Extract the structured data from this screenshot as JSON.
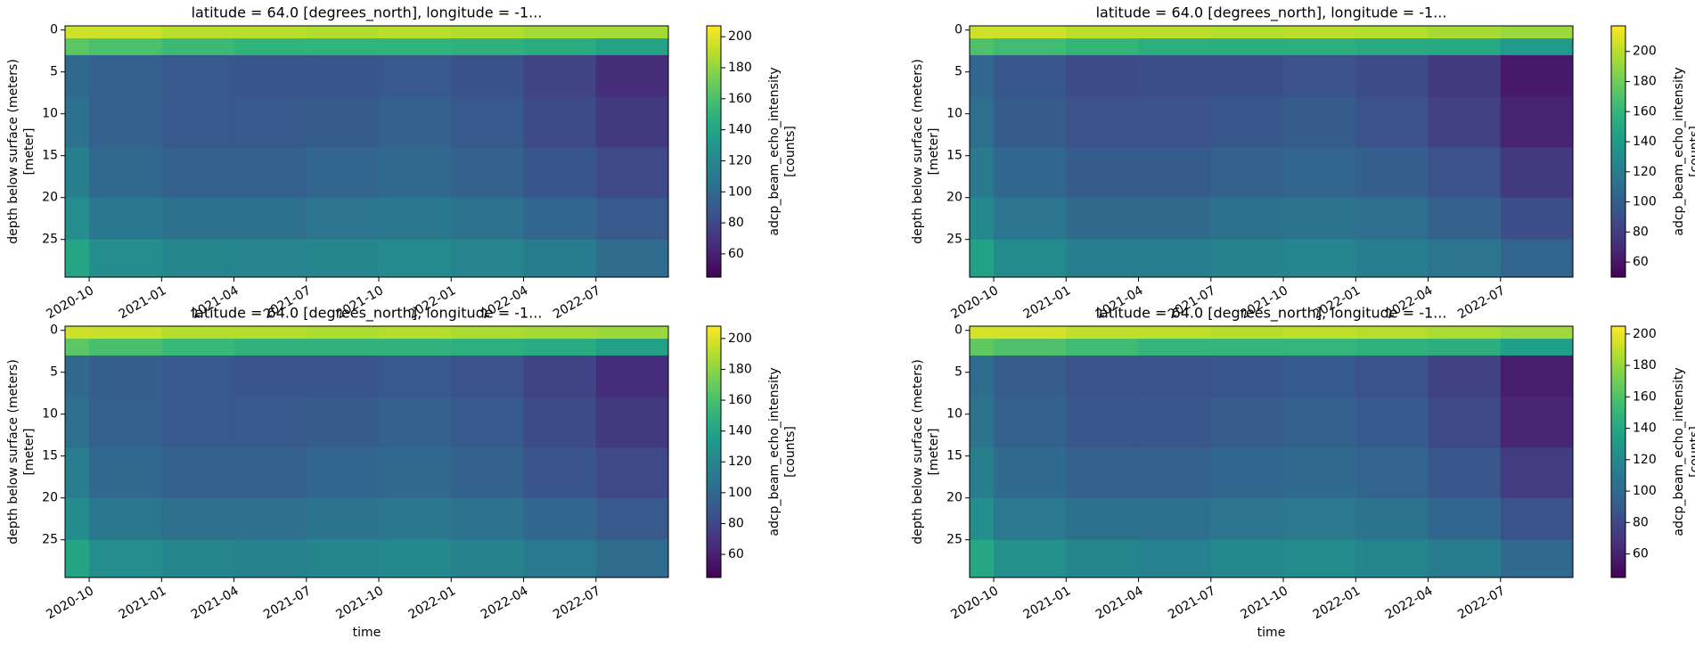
{
  "chart_data": [
    {
      "type": "heatmap",
      "title": "latitude = 64.0 [degrees_north], longitude = -1...",
      "ylabel": [
        "depth below surface (meters)",
        "[meter]"
      ],
      "colorbar_label": [
        "adcp_beam_echo_intensity",
        "[counts]"
      ],
      "colormap": "viridis",
      "x": [
        "2020-09",
        "2020-10",
        "2021-01",
        "2021-04",
        "2021-07",
        "2021-10",
        "2022-01",
        "2022-04",
        "2022-07",
        "2022-10"
      ],
      "y": [
        -0.5,
        1,
        3,
        8,
        14,
        20,
        25,
        29.5
      ],
      "z": [
        [
          195,
          195,
          190,
          190,
          188,
          190,
          188,
          185,
          185
        ],
        [
          165,
          160,
          155,
          150,
          150,
          150,
          148,
          145,
          138
        ],
        [
          100,
          95,
          90,
          88,
          88,
          90,
          86,
          78,
          66
        ],
        [
          105,
          95,
          90,
          90,
          92,
          95,
          90,
          82,
          72
        ],
        [
          115,
          100,
          95,
          95,
          98,
          100,
          96,
          88,
          80
        ],
        [
          125,
          110,
          105,
          105,
          108,
          110,
          106,
          98,
          90
        ],
        [
          140,
          125,
          120,
          118,
          120,
          122,
          118,
          112,
          102
        ]
      ],
      "xlim": [
        "2020-09",
        "2022-10"
      ],
      "xticks": [
        "2020-10",
        "2021-01",
        "2021-04",
        "2021-07",
        "2021-10",
        "2022-01",
        "2022-04",
        "2022-07"
      ],
      "ylim": [
        29.5,
        -0.5
      ],
      "yticks": [
        0,
        5,
        10,
        15,
        20,
        25
      ],
      "clim": [
        45,
        207
      ],
      "cticks": [
        60,
        80,
        100,
        120,
        140,
        160,
        180,
        200
      ]
    },
    {
      "type": "heatmap",
      "title": "latitude = 64.0 [degrees_north], longitude = -1...",
      "ylabel": [
        "depth below surface (meters)",
        "[meter]"
      ],
      "colorbar_label": [
        "adcp_beam_echo_intensity",
        "[counts]"
      ],
      "colormap": "viridis",
      "x": [
        "2020-09",
        "2020-10",
        "2021-01",
        "2021-04",
        "2021-07",
        "2021-10",
        "2022-01",
        "2022-04",
        "2022-07",
        "2022-10"
      ],
      "y": [
        -0.5,
        1,
        3,
        8,
        14,
        20,
        25,
        29.5
      ],
      "z": [
        [
          205,
          205,
          200,
          200,
          198,
          200,
          198,
          195,
          192
        ],
        [
          170,
          165,
          160,
          155,
          155,
          155,
          152,
          150,
          140
        ],
        [
          105,
          95,
          88,
          90,
          90,
          92,
          88,
          78,
          62
        ],
        [
          110,
          98,
          92,
          92,
          95,
          98,
          92,
          82,
          66
        ],
        [
          118,
          105,
          98,
          98,
          102,
          104,
          100,
          92,
          78
        ],
        [
          128,
          115,
          108,
          108,
          112,
          114,
          110,
          102,
          90
        ],
        [
          145,
          130,
          122,
          122,
          125,
          126,
          122,
          116,
          104
        ]
      ],
      "xlim": [
        "2020-09",
        "2022-10"
      ],
      "xticks": [
        "2020-10",
        "2021-01",
        "2021-04",
        "2021-07",
        "2021-10",
        "2022-01",
        "2022-04",
        "2022-07"
      ],
      "ylim": [
        29.5,
        -0.5
      ],
      "yticks": [
        0,
        5,
        10,
        15,
        20,
        25
      ],
      "clim": [
        50,
        217
      ],
      "cticks": [
        60,
        80,
        100,
        120,
        140,
        160,
        180,
        200
      ]
    },
    {
      "type": "heatmap",
      "title": "latitude = 64.0 [degrees_north], longitude = -1...",
      "ylabel": [
        "depth below surface (meters)",
        "[meter]"
      ],
      "colorbar_label": [
        "adcp_beam_echo_intensity",
        "[counts]"
      ],
      "colormap": "viridis",
      "x": [
        "2020-09",
        "2020-10",
        "2021-01",
        "2021-04",
        "2021-07",
        "2021-10",
        "2022-01",
        "2022-04",
        "2022-07",
        "2022-10"
      ],
      "y": [
        -0.5,
        1,
        3,
        8,
        14,
        20,
        25,
        29.5
      ],
      "z": [
        [
          196,
          195,
          190,
          190,
          188,
          190,
          188,
          186,
          184
        ],
        [
          166,
          160,
          155,
          150,
          150,
          150,
          148,
          145,
          138
        ],
        [
          100,
          94,
          90,
          88,
          88,
          90,
          86,
          78,
          66
        ],
        [
          104,
          95,
          90,
          90,
          92,
          95,
          90,
          82,
          72
        ],
        [
          114,
          100,
          95,
          95,
          98,
          100,
          96,
          88,
          80
        ],
        [
          124,
          110,
          105,
          105,
          108,
          110,
          106,
          98,
          90
        ],
        [
          140,
          125,
          120,
          118,
          120,
          122,
          118,
          112,
          102
        ]
      ],
      "xlim": [
        "2020-09",
        "2022-10"
      ],
      "xticks": [
        "2020-10",
        "2021-01",
        "2021-04",
        "2021-07",
        "2021-10",
        "2022-01",
        "2022-04",
        "2022-07"
      ],
      "xlabel": "time",
      "ylim": [
        29.5,
        -0.5
      ],
      "yticks": [
        0,
        5,
        10,
        15,
        20,
        25
      ],
      "clim": [
        45,
        208
      ],
      "cticks": [
        60,
        80,
        100,
        120,
        140,
        160,
        180,
        200
      ]
    },
    {
      "type": "heatmap",
      "title": "latitude = 64.0 [degrees_north], longitude = -1...",
      "ylabel": [
        "depth below surface (meters)",
        "[meter]"
      ],
      "colorbar_label": [
        "adcp_beam_echo_intensity",
        "[counts]"
      ],
      "colormap": "viridis",
      "x": [
        "2020-09",
        "2020-10",
        "2021-01",
        "2021-04",
        "2021-07",
        "2021-10",
        "2022-01",
        "2022-04",
        "2022-07",
        "2022-10"
      ],
      "y": [
        -0.5,
        1,
        3,
        8,
        14,
        20,
        25,
        29.5
      ],
      "z": [
        [
          195,
          195,
          190,
          190,
          188,
          190,
          188,
          185,
          182
        ],
        [
          165,
          160,
          155,
          150,
          150,
          150,
          148,
          145,
          135
        ],
        [
          102,
          92,
          86,
          86,
          88,
          90,
          86,
          76,
          58
        ],
        [
          106,
          95,
          88,
          88,
          92,
          95,
          90,
          80,
          62
        ],
        [
          114,
          100,
          94,
          94,
          98,
          100,
          96,
          88,
          74
        ],
        [
          124,
          110,
          104,
          104,
          108,
          110,
          106,
          98,
          86
        ],
        [
          140,
          125,
          118,
          116,
          120,
          122,
          118,
          112,
          100
        ]
      ],
      "xlim": [
        "2020-09",
        "2022-10"
      ],
      "xticks": [
        "2020-10",
        "2021-01",
        "2021-04",
        "2021-07",
        "2021-10",
        "2022-01",
        "2022-04",
        "2022-07"
      ],
      "xlabel": "time",
      "ylim": [
        29.5,
        -0.5
      ],
      "yticks": [
        0,
        5,
        10,
        15,
        20,
        25
      ],
      "clim": [
        45,
        205
      ],
      "cticks": [
        60,
        80,
        100,
        120,
        140,
        160,
        180,
        200
      ]
    }
  ]
}
